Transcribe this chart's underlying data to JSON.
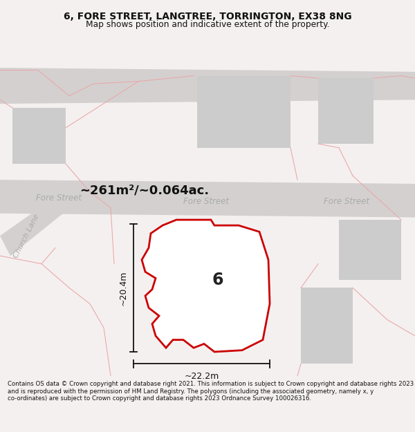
{
  "title_line1": "6, FORE STREET, LANGTREE, TORRINGTON, EX38 8NG",
  "title_line2": "Map shows position and indicative extent of the property.",
  "footer_text": "Contains OS data © Crown copyright and database right 2021. This information is subject to Crown copyright and database rights 2023 and is reproduced with the permission of HM Land Registry. The polygons (including the associated geometry, namely x, y co-ordinates) are subject to Crown copyright and database rights 2023 Ordnance Survey 100026316.",
  "area_label": "~261m²/~0.064ac.",
  "number_label": "6",
  "width_label": "~22.2m",
  "height_label": "~20.4m",
  "bg_color": "#f5f0f0",
  "map_bg": "#f8f4f4",
  "road_fill": "#d4d0d0",
  "building_fill": "#cccccc",
  "faint_line_color": "#e8aaaa",
  "property_line_color": "#cc0000",
  "title_color": "#111111",
  "footer_color": "#111111",
  "street_label_color": "#aaaaaa",
  "dim_color": "#111111"
}
